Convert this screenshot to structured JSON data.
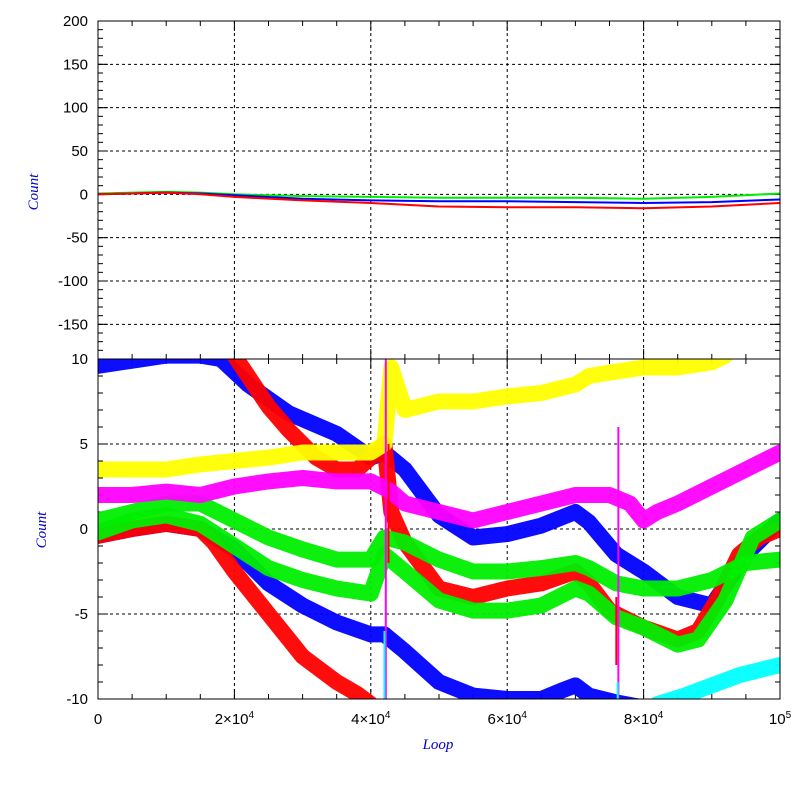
{
  "chart_data": [
    {
      "type": "line",
      "panel": "top",
      "ylabel": "Count",
      "xlabel": "",
      "xlim": [
        0,
        100000
      ],
      "ylim": [
        -190,
        200
      ],
      "grid": true,
      "yticks": [
        {
          "value": 200,
          "label": "200"
        },
        {
          "value": 150,
          "label": "150"
        },
        {
          "value": 100,
          "label": "100"
        },
        {
          "value": 50,
          "label": "50"
        },
        {
          "value": 0,
          "label": "0"
        },
        {
          "value": -50,
          "label": "-50"
        },
        {
          "value": -100,
          "label": "-100"
        },
        {
          "value": -150,
          "label": "-150"
        }
      ],
      "series": [
        {
          "color": "#00ee00",
          "x": [
            0,
            5000,
            10000,
            15000,
            20000,
            30000,
            40000,
            50000,
            60000,
            70000,
            80000,
            90000,
            100000
          ],
          "y": [
            1,
            2,
            3,
            2,
            0,
            -2,
            -3,
            -4,
            -4,
            -4,
            -5,
            -3,
            1
          ]
        },
        {
          "color": "#0000ff",
          "x": [
            0,
            5000,
            10000,
            15000,
            20000,
            30000,
            40000,
            50000,
            60000,
            70000,
            80000,
            90000,
            100000
          ],
          "y": [
            0,
            1,
            2,
            1,
            -1,
            -5,
            -7,
            -8,
            -8,
            -9,
            -10,
            -9,
            -6
          ]
        },
        {
          "color": "#ff0000",
          "x": [
            0,
            5000,
            10000,
            15000,
            20000,
            30000,
            40000,
            50000,
            60000,
            70000,
            80000,
            90000,
            100000
          ],
          "y": [
            0,
            1,
            2,
            0,
            -3,
            -7,
            -10,
            -14,
            -15,
            -15,
            -16,
            -14,
            -10
          ]
        }
      ]
    },
    {
      "type": "line",
      "panel": "bottom",
      "ylabel": "Count",
      "xlabel": "Loop",
      "xlim": [
        0,
        100000
      ],
      "ylim": [
        -10,
        10
      ],
      "grid": true,
      "yticks": [
        {
          "value": 10,
          "label": "10"
        },
        {
          "value": 5,
          "label": "5"
        },
        {
          "value": 0,
          "label": "0"
        },
        {
          "value": -5,
          "label": "-5"
        },
        {
          "value": -10,
          "label": "-10"
        }
      ],
      "xticks": [
        {
          "value": 0,
          "label": "0"
        },
        {
          "value": 20000,
          "label": "2×10",
          "sup": "4"
        },
        {
          "value": 40000,
          "label": "4×10",
          "sup": "4"
        },
        {
          "value": 60000,
          "label": "6×10",
          "sup": "4"
        },
        {
          "value": 80000,
          "label": "8×10",
          "sup": "4"
        },
        {
          "value": 100000,
          "label": "10",
          "sup": "5"
        }
      ],
      "series": [
        {
          "color": "#0000ff",
          "x": [
            0,
            5000,
            10000,
            15000,
            18000,
            22000,
            28000,
            35000,
            40000,
            42000,
            45000,
            50000,
            55000,
            60000,
            65000,
            70000,
            72000,
            76000,
            80000,
            85000,
            90000,
            95000,
            100000
          ],
          "y": [
            9.6,
            9.9,
            10.2,
            10.2,
            10,
            8.5,
            6.8,
            5.6,
            4.2,
            4.5,
            3.5,
            0.8,
            -0.5,
            -0.3,
            0.2,
            1,
            0.4,
            -1.5,
            -2.5,
            -4,
            -4.5,
            -1.5,
            0.5
          ]
        },
        {
          "color": "#0000ff",
          "x": [
            0,
            5000,
            10000,
            15000,
            20000,
            25000,
            30000,
            35000,
            40000,
            42000,
            45000,
            50000,
            55000,
            60000,
            65000,
            68000,
            70000,
            72000,
            76000,
            80000
          ],
          "y": [
            -0.4,
            0,
            0.3,
            0,
            -1.2,
            -3.2,
            -4.5,
            -5.5,
            -6.2,
            -6.2,
            -7.2,
            -9,
            -9.8,
            -10,
            -10,
            -9.5,
            -9.2,
            -9.8,
            -10.2,
            -10.5
          ]
        },
        {
          "color": "#ff0000",
          "x": [
            19500,
            22000,
            25000,
            28000,
            32000,
            35000,
            38000,
            40000,
            42000,
            43000,
            45000,
            50000,
            55000,
            60000,
            65000,
            70000,
            72000,
            75000,
            80000,
            85000,
            88000,
            91000,
            94000,
            97000,
            100000
          ],
          "y": [
            10.5,
            9,
            7.2,
            5.8,
            4.2,
            3.5,
            3.5,
            4.2,
            5,
            1,
            -0.8,
            -3.5,
            -4,
            -3.5,
            -3.2,
            -2.5,
            -3.2,
            -4.8,
            -5.8,
            -6.5,
            -6,
            -4,
            -1.5,
            -0.5,
            0
          ]
        },
        {
          "color": "#ff0000",
          "x": [
            0,
            5000,
            10000,
            15000,
            17000,
            20000,
            25000,
            30000,
            35000,
            38000,
            40000
          ],
          "y": [
            -0.4,
            0,
            0.3,
            0,
            -0.8,
            -2.5,
            -5,
            -7.5,
            -9,
            -9.7,
            -10.3
          ]
        },
        {
          "color": "#00ee00",
          "x": [
            0,
            5000,
            10000,
            15000,
            20000,
            25000,
            30000,
            35000,
            40000,
            42000,
            45000,
            50000,
            55000,
            60000,
            65000,
            70000,
            72000,
            76000,
            80000,
            85000,
            90000,
            95000,
            100000
          ],
          "y": [
            0.5,
            1,
            1.5,
            1.5,
            0.5,
            -0.5,
            -1.2,
            -1.8,
            -1.8,
            -0.5,
            -0.8,
            -1.8,
            -2.5,
            -2.5,
            -2.3,
            -2,
            -2.3,
            -3.2,
            -3.5,
            -3.5,
            -3,
            -2,
            -1.8
          ]
        },
        {
          "color": "#00ee00",
          "x": [
            0,
            5000,
            10000,
            15000,
            20000,
            25000,
            30000,
            35000,
            40000,
            42000,
            45000,
            50000,
            55000,
            60000,
            65000,
            70000,
            72000,
            76000,
            80000,
            85000,
            88000,
            92000,
            96000,
            100000
          ],
          "y": [
            -0.2,
            0.5,
            0.8,
            0.3,
            -1,
            -2.3,
            -3,
            -3.5,
            -3.8,
            -1.5,
            -2.5,
            -4.2,
            -4.8,
            -4.8,
            -4.5,
            -3.5,
            -3.8,
            -5.2,
            -5.8,
            -6.8,
            -6.5,
            -4.2,
            -0.5,
            0.5
          ]
        },
        {
          "color": "#ff00ff",
          "x": [
            0,
            5000,
            10000,
            15000,
            20000,
            25000,
            30000,
            35000,
            40000,
            43000,
            45000,
            50000,
            55000,
            60000,
            65000,
            70000,
            75000,
            78000,
            80000,
            82000,
            85000,
            90000,
            95000,
            100000
          ],
          "y": [
            2,
            2,
            2.2,
            2,
            2.5,
            2.8,
            3,
            2.8,
            2.8,
            2.2,
            1.5,
            1,
            0.5,
            1,
            1.5,
            2,
            2,
            1.5,
            0.5,
            1,
            1.5,
            2.5,
            3.5,
            4.5
          ]
        },
        {
          "color": "#ffff00",
          "x": [
            0,
            5000,
            10000,
            15000,
            20000,
            25000,
            30000,
            35000,
            40000,
            42000,
            43000,
            45000,
            50000,
            55000,
            60000,
            65000,
            70000,
            72000,
            75000,
            80000,
            85000,
            90000,
            92000
          ],
          "y": [
            3.5,
            3.5,
            3.5,
            3.8,
            4,
            4.2,
            4.5,
            4.5,
            4.5,
            5,
            9.5,
            7,
            7.5,
            7.5,
            7.8,
            8,
            8.5,
            9,
            9.2,
            9.5,
            9.5,
            9.8,
            10.2
          ]
        },
        {
          "color": "#00ffff",
          "x": [
            82000,
            86000,
            90000,
            94000,
            98000,
            100000
          ],
          "y": [
            -10.3,
            -9.8,
            -9.2,
            -8.6,
            -8.2,
            -8
          ]
        }
      ],
      "spikes": [
        {
          "color": "#ff00ff",
          "x": 42200,
          "y1": -10,
          "y2": 10
        },
        {
          "color": "#ff0000",
          "x": 42600,
          "y1": -2,
          "y2": 5
        },
        {
          "color": "#00ffff",
          "x": 42000,
          "y1": -10,
          "y2": -6
        },
        {
          "color": "#ff0000",
          "x": 76000,
          "y1": -8,
          "y2": -4
        },
        {
          "color": "#ff00ff",
          "x": 76300,
          "y1": -10,
          "y2": 6
        },
        {
          "color": "#00ffff",
          "x": 76200,
          "y1": -10,
          "y2": -9
        }
      ]
    }
  ]
}
